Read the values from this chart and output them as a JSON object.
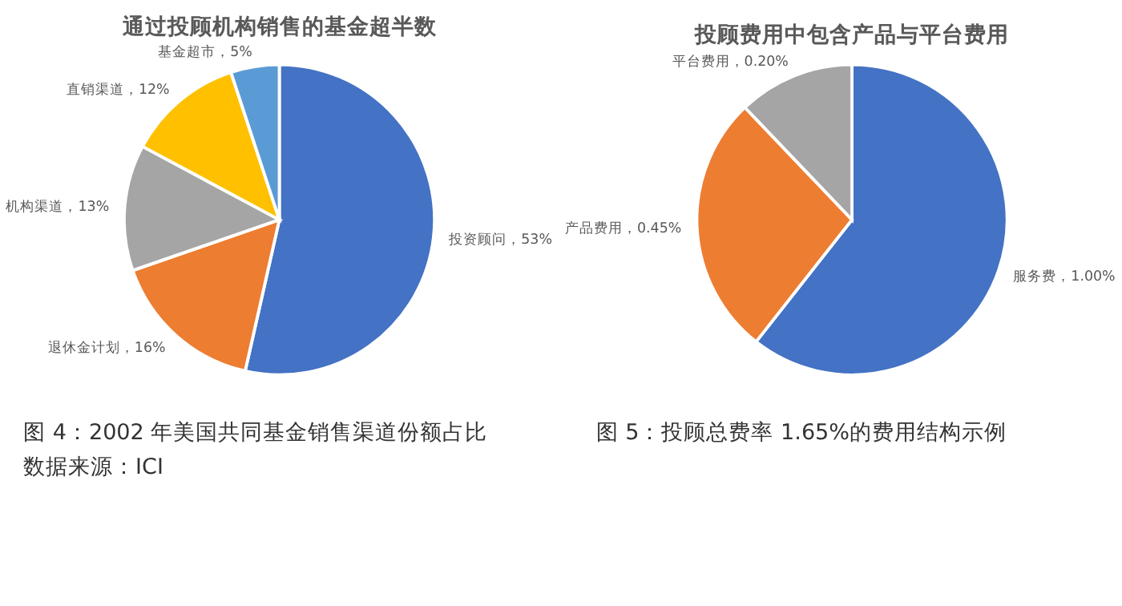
{
  "chart_data": [
    {
      "type": "pie",
      "title": "通过投顾机构销售的基金超半数",
      "categories": [
        "投资顾问",
        "退休金计划",
        "机构渠道",
        "直销渠道",
        "基金超市"
      ],
      "values": [
        53,
        16,
        13,
        12,
        5
      ],
      "colors": [
        "#4472c4",
        "#ed7d31",
        "#a5a5a5",
        "#ffc000",
        "#5b9bd5"
      ],
      "value_labels": [
        "53%",
        "16%",
        "13%",
        "12%",
        "5%"
      ],
      "annotations": [
        "图 4：2002 年美国共同基金销售渠道份额占比",
        "数据来源：ICI"
      ]
    },
    {
      "type": "pie",
      "title": "投顾费用中包含产品与平台费用",
      "categories": [
        "服务费",
        "产品费用",
        "平台费用"
      ],
      "values": [
        1.0,
        0.45,
        0.2
      ],
      "colors": [
        "#4472c4",
        "#ed7d31",
        "#a5a5a5"
      ],
      "value_labels": [
        "1.00%",
        "0.45%",
        "0.20%"
      ],
      "annotations": [
        "图 5：投顾总费率 1.65%的费用结构示例"
      ]
    }
  ]
}
